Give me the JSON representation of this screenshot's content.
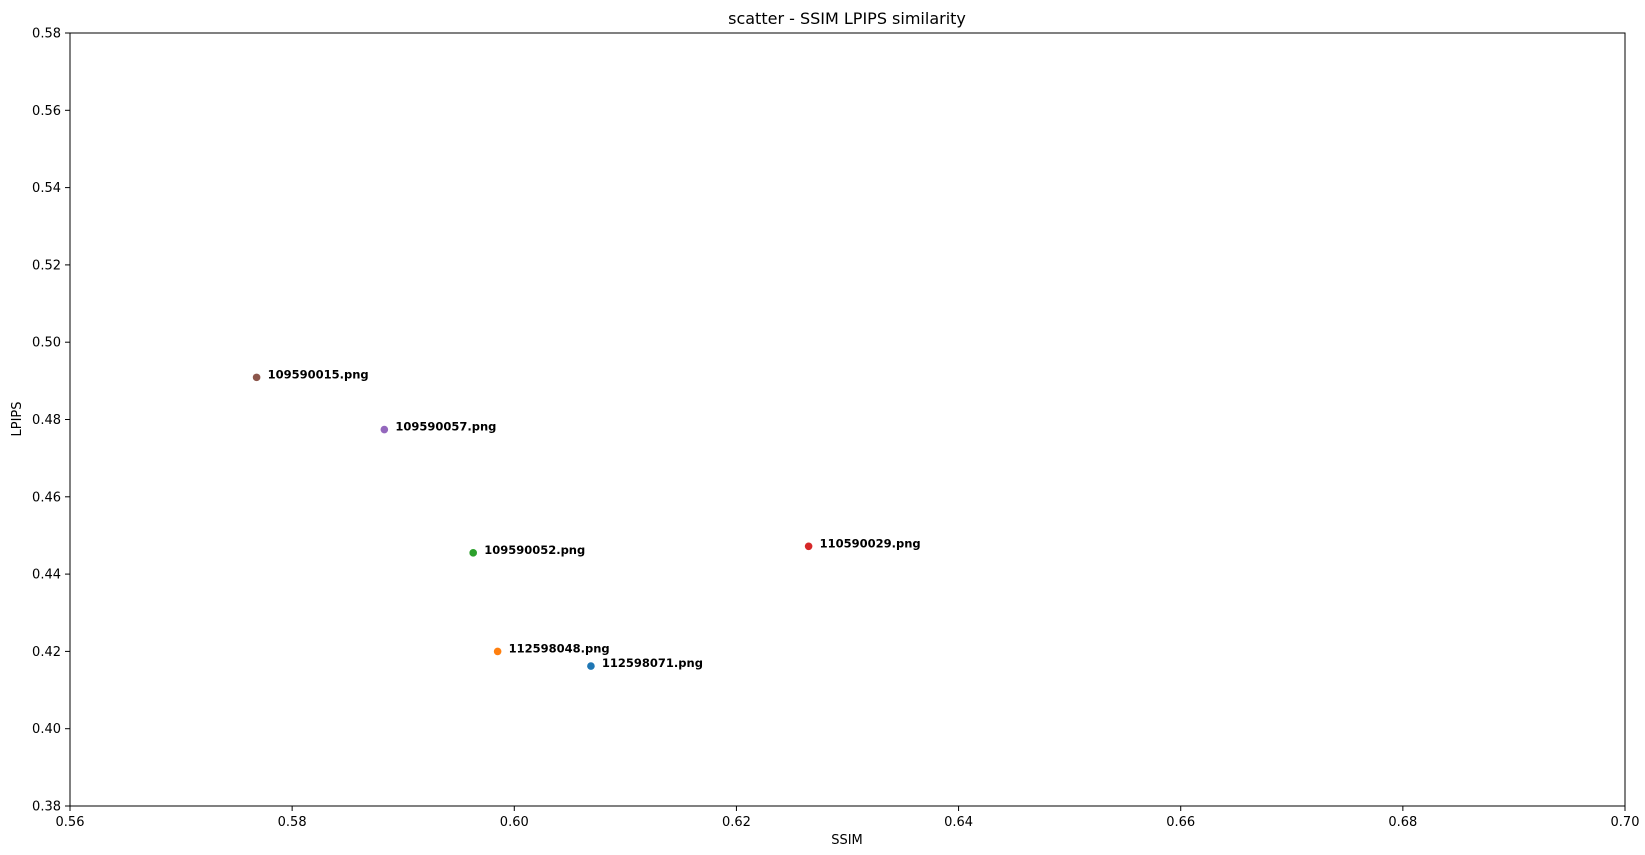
{
  "chart_data": {
    "type": "scatter",
    "title": "scatter - SSIM LPIPS similarity",
    "xlabel": "SSIM",
    "ylabel": "LPIPS",
    "xlim": [
      0.56,
      0.7
    ],
    "ylim": [
      0.38,
      0.58
    ],
    "xticks": [
      "0.56",
      "0.58",
      "0.60",
      "0.62",
      "0.64",
      "0.66",
      "0.68",
      "0.70"
    ],
    "yticks": [
      "0.38",
      "0.40",
      "0.42",
      "0.44",
      "0.46",
      "0.48",
      "0.50",
      "0.52",
      "0.54",
      "0.56",
      "0.58"
    ],
    "grid": false,
    "points": [
      {
        "label": "112598071.png",
        "x": 0.6069,
        "y": 0.4162,
        "color": "#1f77b4"
      },
      {
        "label": "112598048.png",
        "x": 0.5985,
        "y": 0.42,
        "color": "#ff7f0e"
      },
      {
        "label": "109590052.png",
        "x": 0.5963,
        "y": 0.4455,
        "color": "#2ca02c"
      },
      {
        "label": "110590029.png",
        "x": 0.6265,
        "y": 0.4472,
        "color": "#d62728"
      },
      {
        "label": "109590057.png",
        "x": 0.5883,
        "y": 0.4774,
        "color": "#9467bd"
      },
      {
        "label": "109590015.png",
        "x": 0.5768,
        "y": 0.4909,
        "color": "#8c564b"
      }
    ]
  }
}
